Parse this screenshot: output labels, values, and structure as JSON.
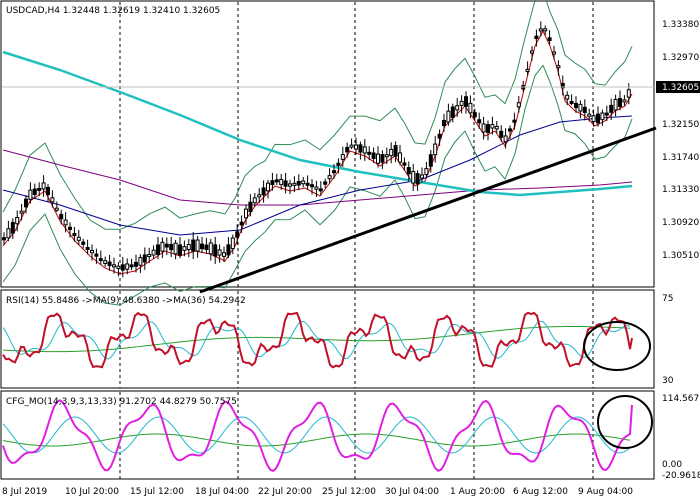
{
  "price_panel": {
    "header": "USDCAD,H4  1.32448  1.32619  1.32410  1.32605",
    "current_price": "1.32605",
    "axis_labels": [
      "1.33380",
      "1.32970",
      "1.32150",
      "1.31740",
      "1.31330",
      "1.30920",
      "1.30510"
    ]
  },
  "rsi_panel": {
    "header": "RSI(14) 55.8486   ->MA(9) 48.6380   ->MA(36) 54.2942",
    "axis_labels": [
      "75",
      "30"
    ]
  },
  "cfg_panel": {
    "header": "CFG_MO(14,3,9,3,13,33) 91.2702 44.8279 50.7575",
    "axis_labels": [
      "114.567",
      "0.00",
      "-20.9618"
    ]
  },
  "time_axis": [
    "8 Jul 2019",
    "10 Jul 20:00",
    "15 Jul 12:00",
    "18 Jul 04:00",
    "22 Jul 20:00",
    "25 Jul 12:00",
    "30 Jul 04:00",
    "1 Aug 20:00",
    "6 Aug 12:00",
    "9 Aug 04:00"
  ],
  "colors": {
    "candle": "#000000",
    "bollinger": "#2e8b57",
    "ma_fast": "#c00000",
    "ma_blue": "#00008b",
    "ma_purple": "#800080",
    "ma_cyan": "#20c0c0",
    "trendline": "#000000",
    "rsi": "#c0102a",
    "rsi_ma9": "#20b8d0",
    "rsi_ma36": "#2aa02a",
    "cfg": "#e020e0",
    "cfg_s1": "#20b8d0",
    "cfg_s2": "#2aa02a",
    "annotation_circle": "#000000"
  },
  "annotations": [
    "circle-rsi-end",
    "circle-cfg-end"
  ]
}
